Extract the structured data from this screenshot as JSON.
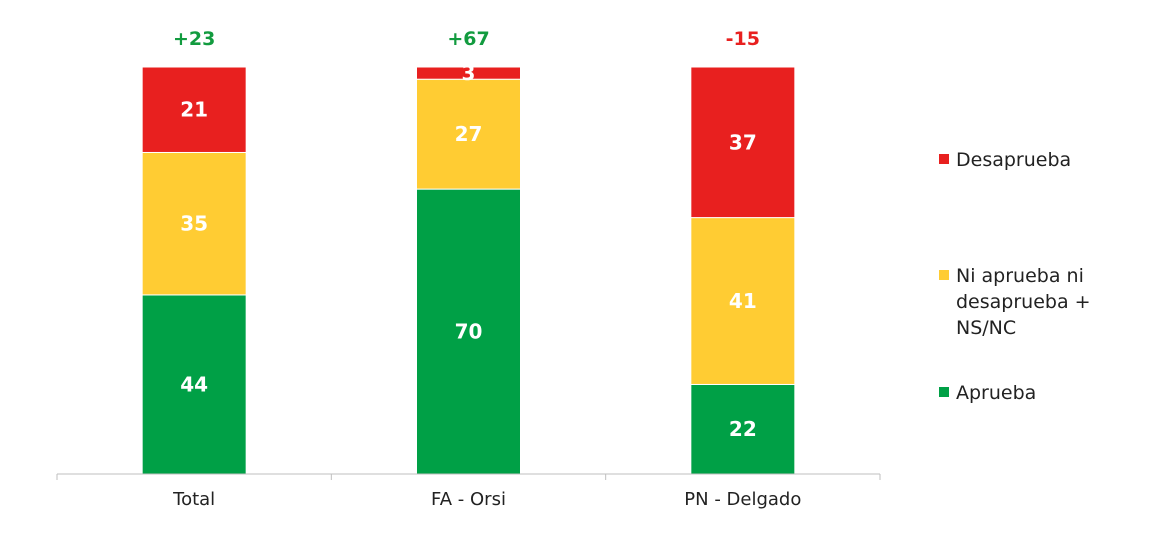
{
  "chart_data": {
    "type": "bar",
    "stacked": true,
    "title": "",
    "xlabel": "",
    "ylabel": "",
    "ylim": [
      0,
      100
    ],
    "grid": false,
    "legend_position": "right",
    "categories": [
      "Total",
      "FA - Orsi",
      "PN - Delgado"
    ],
    "series": [
      {
        "name": "Aprueba",
        "values": [
          44,
          70,
          22
        ],
        "color": "#00A046"
      },
      {
        "name": "Ni aprueba ni desaprueba + NS/NC",
        "values": [
          35,
          27,
          41
        ],
        "color": "#FFCC33"
      },
      {
        "name": "Desaprueba",
        "values": [
          21,
          3,
          37
        ],
        "color": "#E8201F"
      }
    ],
    "net_labels": [
      "+23",
      "+67",
      "-15"
    ],
    "net_colors": [
      "#129B3F",
      "#129B3F",
      "#E8201F"
    ]
  }
}
